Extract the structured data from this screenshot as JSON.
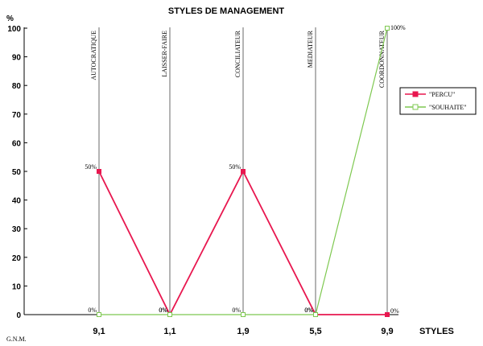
{
  "chart_data": {
    "type": "line",
    "title": "STYLES DE MANAGEMENT",
    "ylabel": "%",
    "xlabel": "STYLES",
    "bottom_left_label": "G.N.M.",
    "ylim": [
      0,
      100
    ],
    "yticks": [
      "0",
      "10",
      "20",
      "30",
      "40",
      "50",
      "60",
      "70",
      "80",
      "90",
      "100"
    ],
    "categories": [
      "AUTOCRATIQUE",
      "LAISSER-FAIRE",
      "CONCILIATEUR",
      "MEDIATEUR",
      "COORDONNATEUR"
    ],
    "x_tick_labels": [
      "9,1",
      "1,1",
      "1,9",
      "5,5",
      "9,9"
    ],
    "series": [
      {
        "name": "\"PERCU\"",
        "color": "#e8174f",
        "values": [
          50,
          0,
          50,
          0,
          0
        ],
        "labels": [
          "50%",
          "0%",
          "50%",
          "0%",
          "0%"
        ]
      },
      {
        "name": "\"SOUHAITE\"",
        "color": "#7ec850",
        "values": [
          0,
          0,
          0,
          0,
          100
        ],
        "labels": [
          "0%",
          "0%",
          "0%",
          "0%",
          "100%"
        ]
      }
    ],
    "legend_position": "right",
    "grid": false
  }
}
